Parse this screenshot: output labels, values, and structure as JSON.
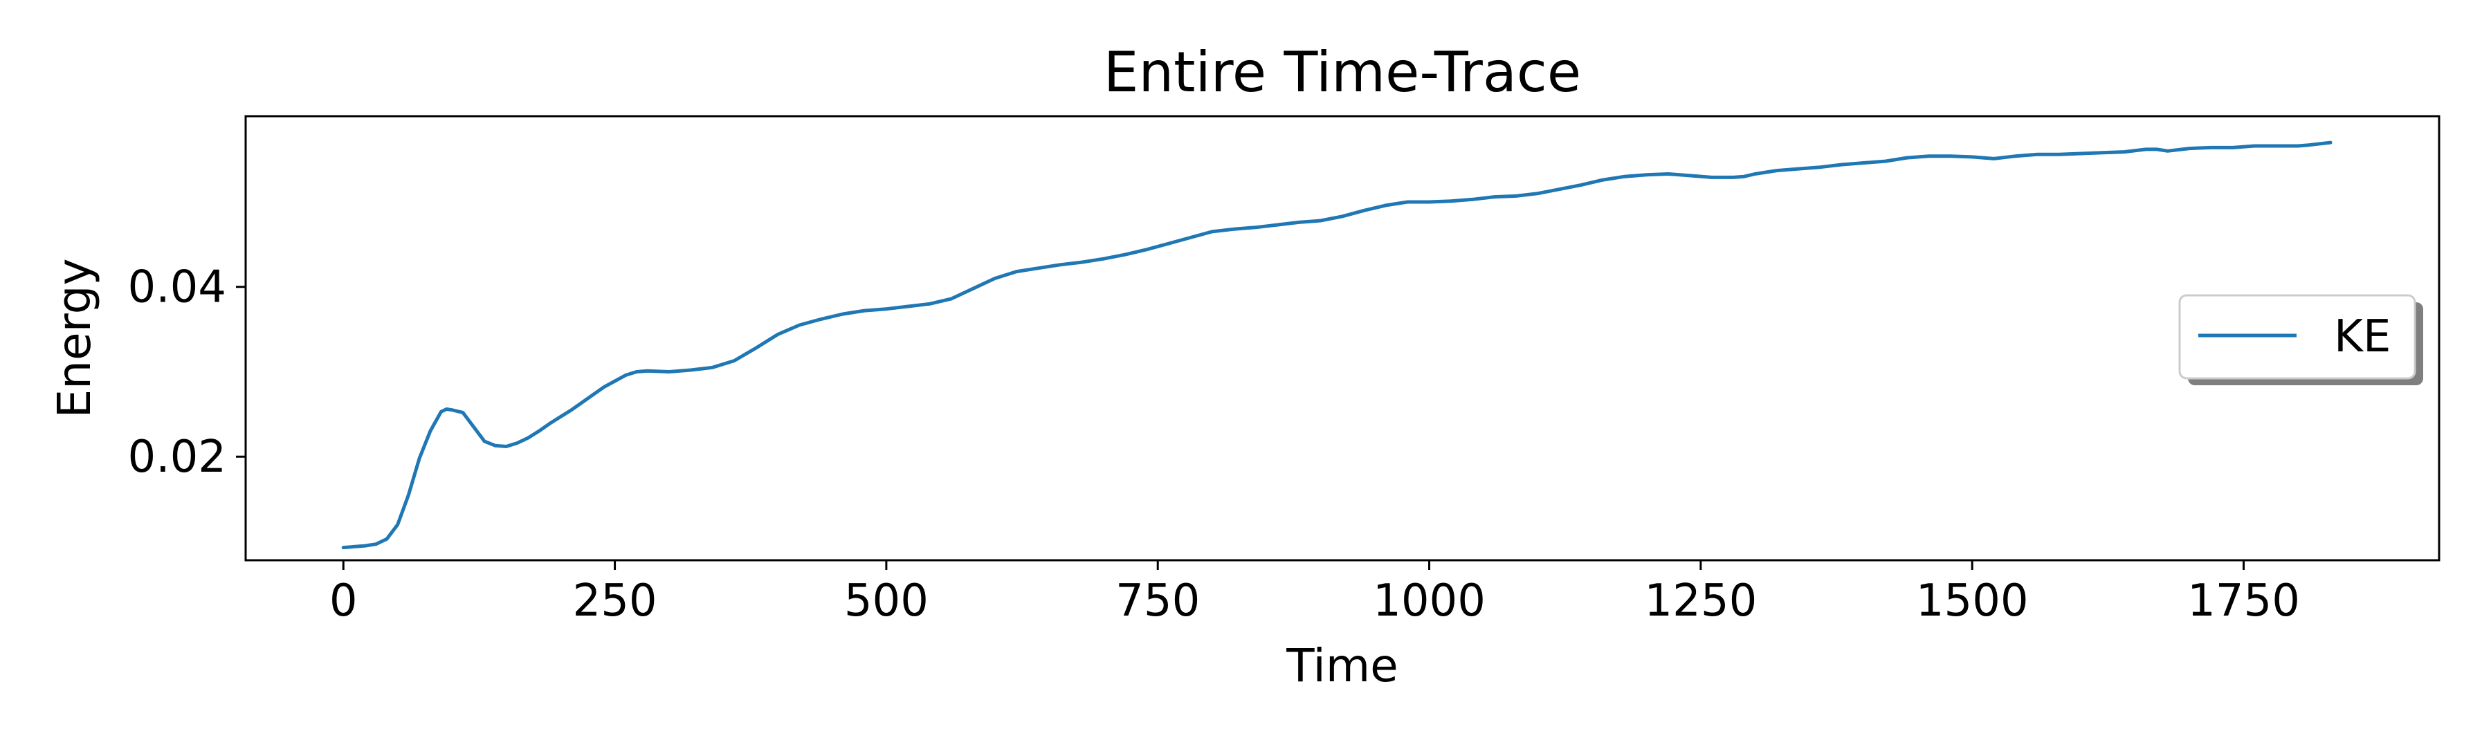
{
  "chart_data": {
    "type": "line",
    "title": "Entire Time-Trace",
    "xlabel": "Time",
    "ylabel": "Energy",
    "xlim": [
      -90,
      1930
    ],
    "ylim": [
      0.0078,
      0.0601
    ],
    "xticks": [
      0,
      250,
      500,
      750,
      1000,
      1250,
      1500,
      1750
    ],
    "xtick_labels": [
      "0",
      "250",
      "500",
      "750",
      "1000",
      "1250",
      "1500",
      "1750"
    ],
    "yticks": [
      0.02,
      0.04
    ],
    "ytick_labels": [
      "0.02",
      "0.04"
    ],
    "grid": false,
    "legend_position": "center-right",
    "series": [
      {
        "name": "KE",
        "color": "#1f77b4",
        "x": [
          0,
          20,
          30,
          40,
          50,
          60,
          70,
          80,
          90,
          95,
          100,
          110,
          120,
          130,
          140,
          150,
          160,
          170,
          180,
          190,
          200,
          210,
          220,
          230,
          240,
          250,
          260,
          270,
          280,
          300,
          320,
          340,
          360,
          380,
          400,
          420,
          440,
          460,
          480,
          500,
          520,
          540,
          560,
          580,
          600,
          620,
          640,
          660,
          680,
          700,
          720,
          740,
          760,
          780,
          800,
          820,
          840,
          860,
          880,
          900,
          920,
          940,
          960,
          980,
          1000,
          1020,
          1040,
          1060,
          1080,
          1100,
          1120,
          1140,
          1160,
          1180,
          1200,
          1220,
          1240,
          1260,
          1280,
          1290,
          1300,
          1320,
          1340,
          1360,
          1380,
          1400,
          1420,
          1440,
          1460,
          1480,
          1500,
          1520,
          1540,
          1560,
          1580,
          1600,
          1620,
          1640,
          1660,
          1670,
          1680,
          1700,
          1720,
          1740,
          1760,
          1780,
          1800,
          1810,
          1830
        ],
        "values": [
          0.0093,
          0.0095,
          0.0097,
          0.0103,
          0.012,
          0.0155,
          0.0198,
          0.023,
          0.0253,
          0.0256,
          0.0255,
          0.0252,
          0.0235,
          0.0218,
          0.0213,
          0.0212,
          0.0216,
          0.0222,
          0.023,
          0.0239,
          0.0247,
          0.0255,
          0.0264,
          0.0273,
          0.0282,
          0.0289,
          0.0296,
          0.03,
          0.0301,
          0.03,
          0.0302,
          0.0305,
          0.0313,
          0.0328,
          0.0344,
          0.0355,
          0.0362,
          0.0368,
          0.0372,
          0.0374,
          0.0377,
          0.038,
          0.0386,
          0.0398,
          0.041,
          0.0418,
          0.0422,
          0.0426,
          0.0429,
          0.0433,
          0.0438,
          0.0444,
          0.0451,
          0.0458,
          0.0465,
          0.0468,
          0.047,
          0.0473,
          0.0476,
          0.0478,
          0.0483,
          0.049,
          0.0496,
          0.05,
          0.05,
          0.0501,
          0.0503,
          0.0506,
          0.0507,
          0.051,
          0.0515,
          0.052,
          0.0526,
          0.053,
          0.0532,
          0.0533,
          0.0531,
          0.0529,
          0.0529,
          0.053,
          0.0533,
          0.0537,
          0.0539,
          0.0541,
          0.0544,
          0.0546,
          0.0548,
          0.0552,
          0.0554,
          0.0554,
          0.0553,
          0.0551,
          0.0554,
          0.0556,
          0.0556,
          0.0557,
          0.0558,
          0.0559,
          0.0562,
          0.0562,
          0.056,
          0.0563,
          0.0564,
          0.0564,
          0.0566,
          0.0566,
          0.0566,
          0.0567,
          0.057
        ]
      }
    ]
  }
}
